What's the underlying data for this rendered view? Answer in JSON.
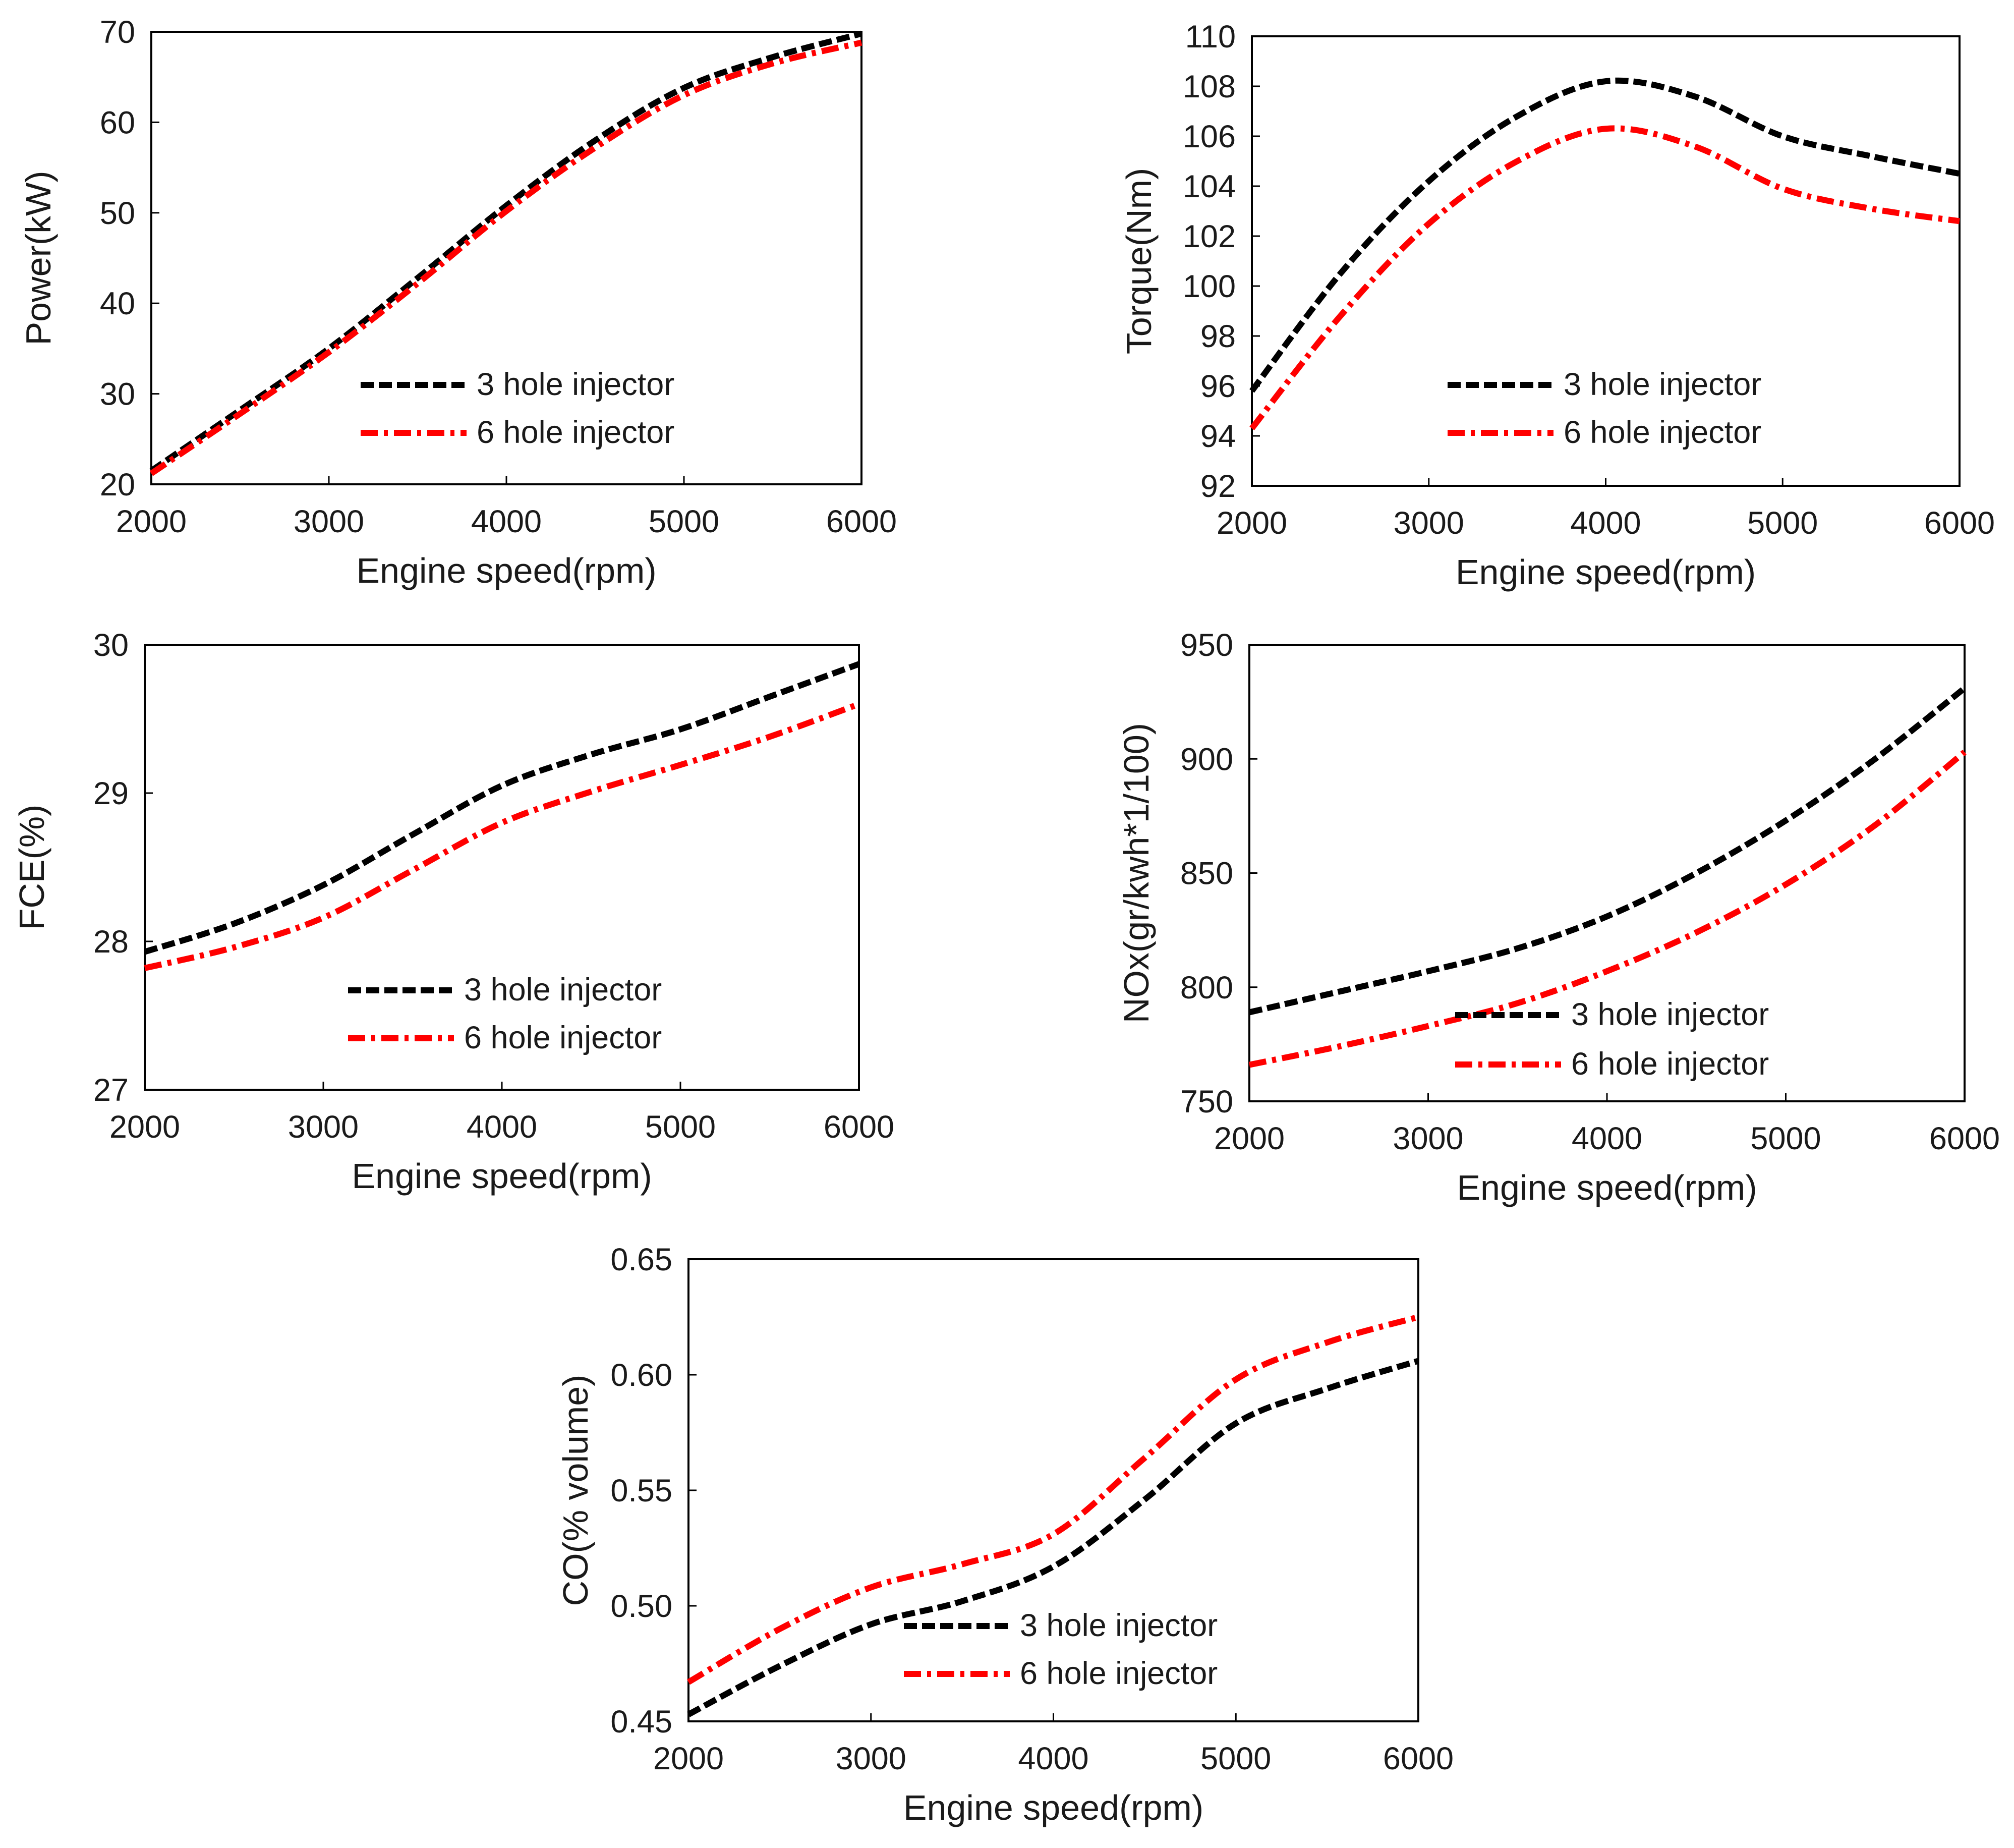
{
  "chart_data": [
    {
      "type": "line",
      "xlabel": "Engine speed(rpm)",
      "ylabel": "Power(kW)",
      "xlim": [
        2000,
        6000
      ],
      "ylim": [
        20,
        70
      ],
      "xticks": [
        2000,
        3000,
        4000,
        5000,
        6000
      ],
      "yticks": [
        20,
        30,
        40,
        50,
        60,
        70
      ],
      "x": [
        2000,
        2500,
        3000,
        3500,
        4000,
        4500,
        5000,
        5500,
        6000
      ],
      "grid": false,
      "legend": "bottom-right",
      "series": [
        {
          "name": "3 hole injector",
          "color": "#000000",
          "style": "dashed",
          "values": [
            21.5,
            28.2,
            35.0,
            42.8,
            50.8,
            58.0,
            63.8,
            67.2,
            69.8
          ]
        },
        {
          "name": "6 hole injector",
          "color": "#ff0000",
          "style": "dashdot",
          "values": [
            21.2,
            27.8,
            34.6,
            42.2,
            50.2,
            57.2,
            63.0,
            66.5,
            68.8
          ]
        }
      ]
    },
    {
      "type": "line",
      "xlabel": "Engine speed(rpm)",
      "ylabel": "Torque(Nm)",
      "xlim": [
        2000,
        6000
      ],
      "ylim": [
        92,
        110
      ],
      "xticks": [
        2000,
        3000,
        4000,
        5000,
        6000
      ],
      "yticks": [
        92,
        94,
        96,
        98,
        100,
        102,
        104,
        106,
        108,
        110
      ],
      "x": [
        2000,
        2500,
        3000,
        3500,
        4000,
        4500,
        5000,
        5500,
        6000
      ],
      "grid": false,
      "legend": "bottom-right",
      "series": [
        {
          "name": "3 hole injector",
          "color": "#000000",
          "style": "dashed",
          "values": [
            95.8,
            100.5,
            104.2,
            106.8,
            108.2,
            107.6,
            106.0,
            105.2,
            104.5
          ]
        },
        {
          "name": "6 hole injector",
          "color": "#ff0000",
          "style": "dashdot",
          "values": [
            94.3,
            98.8,
            102.5,
            105.0,
            106.3,
            105.6,
            103.9,
            103.1,
            102.6
          ]
        }
      ]
    },
    {
      "type": "line",
      "xlabel": "Engine speed(rpm)",
      "ylabel": "FCE(%)",
      "xlim": [
        2000,
        6000
      ],
      "ylim": [
        27,
        30
      ],
      "xticks": [
        2000,
        3000,
        4000,
        5000,
        6000
      ],
      "yticks": [
        27,
        28,
        29,
        30
      ],
      "x": [
        2000,
        2500,
        3000,
        3500,
        4000,
        4500,
        5000,
        5500,
        6000
      ],
      "grid": false,
      "legend": "bottom-right",
      "series": [
        {
          "name": "3 hole injector",
          "color": "#000000",
          "style": "dashed",
          "values": [
            27.93,
            28.12,
            28.38,
            28.72,
            29.05,
            29.26,
            29.43,
            29.65,
            29.87
          ]
        },
        {
          "name": "6 hole injector",
          "color": "#ff0000",
          "style": "dashdot",
          "values": [
            27.82,
            27.96,
            28.16,
            28.48,
            28.8,
            29.01,
            29.19,
            29.38,
            29.6
          ]
        }
      ]
    },
    {
      "type": "line",
      "xlabel": "Engine speed(rpm)",
      "ylabel": "NOx(gr/kwh*1/100)",
      "xlim": [
        2000,
        6000
      ],
      "ylim": [
        750,
        950
      ],
      "xticks": [
        2000,
        3000,
        4000,
        5000,
        6000
      ],
      "yticks": [
        750,
        800,
        850,
        900,
        950
      ],
      "x": [
        2000,
        2500,
        3000,
        3500,
        4000,
        4500,
        5000,
        5500,
        6000
      ],
      "grid": false,
      "legend": "bottom-right",
      "series": [
        {
          "name": "3 hole injector",
          "color": "#000000",
          "style": "dashed",
          "values": [
            789,
            798,
            807,
            817,
            831,
            850,
            873,
            900,
            931
          ]
        },
        {
          "name": "6 hole injector",
          "color": "#ff0000",
          "style": "dashdot",
          "values": [
            766,
            774,
            783,
            793,
            807,
            824,
            845,
            871,
            903
          ]
        }
      ]
    },
    {
      "type": "line",
      "xlabel": "Engine speed(rpm)",
      "ylabel": "CO(% volume)",
      "xlim": [
        2000,
        6000
      ],
      "ylim": [
        0.45,
        0.65
      ],
      "xticks": [
        2000,
        3000,
        4000,
        5000,
        6000
      ],
      "yticks": [
        "0.45",
        "0.50",
        "0.55",
        "0.60",
        "0.65"
      ],
      "x": [
        2000,
        2500,
        3000,
        3500,
        4000,
        4500,
        5000,
        5500,
        6000
      ],
      "grid": false,
      "legend": "bottom-right",
      "series": [
        {
          "name": "3 hole injector",
          "color": "#000000",
          "style": "dashed",
          "values": [
            0.453,
            0.474,
            0.492,
            0.502,
            0.517,
            0.546,
            0.579,
            0.594,
            0.606
          ]
        },
        {
          "name": "6 hole injector",
          "color": "#ff0000",
          "style": "dashdot",
          "values": [
            0.467,
            0.49,
            0.508,
            0.518,
            0.531,
            0.564,
            0.598,
            0.614,
            0.625
          ]
        }
      ]
    }
  ]
}
